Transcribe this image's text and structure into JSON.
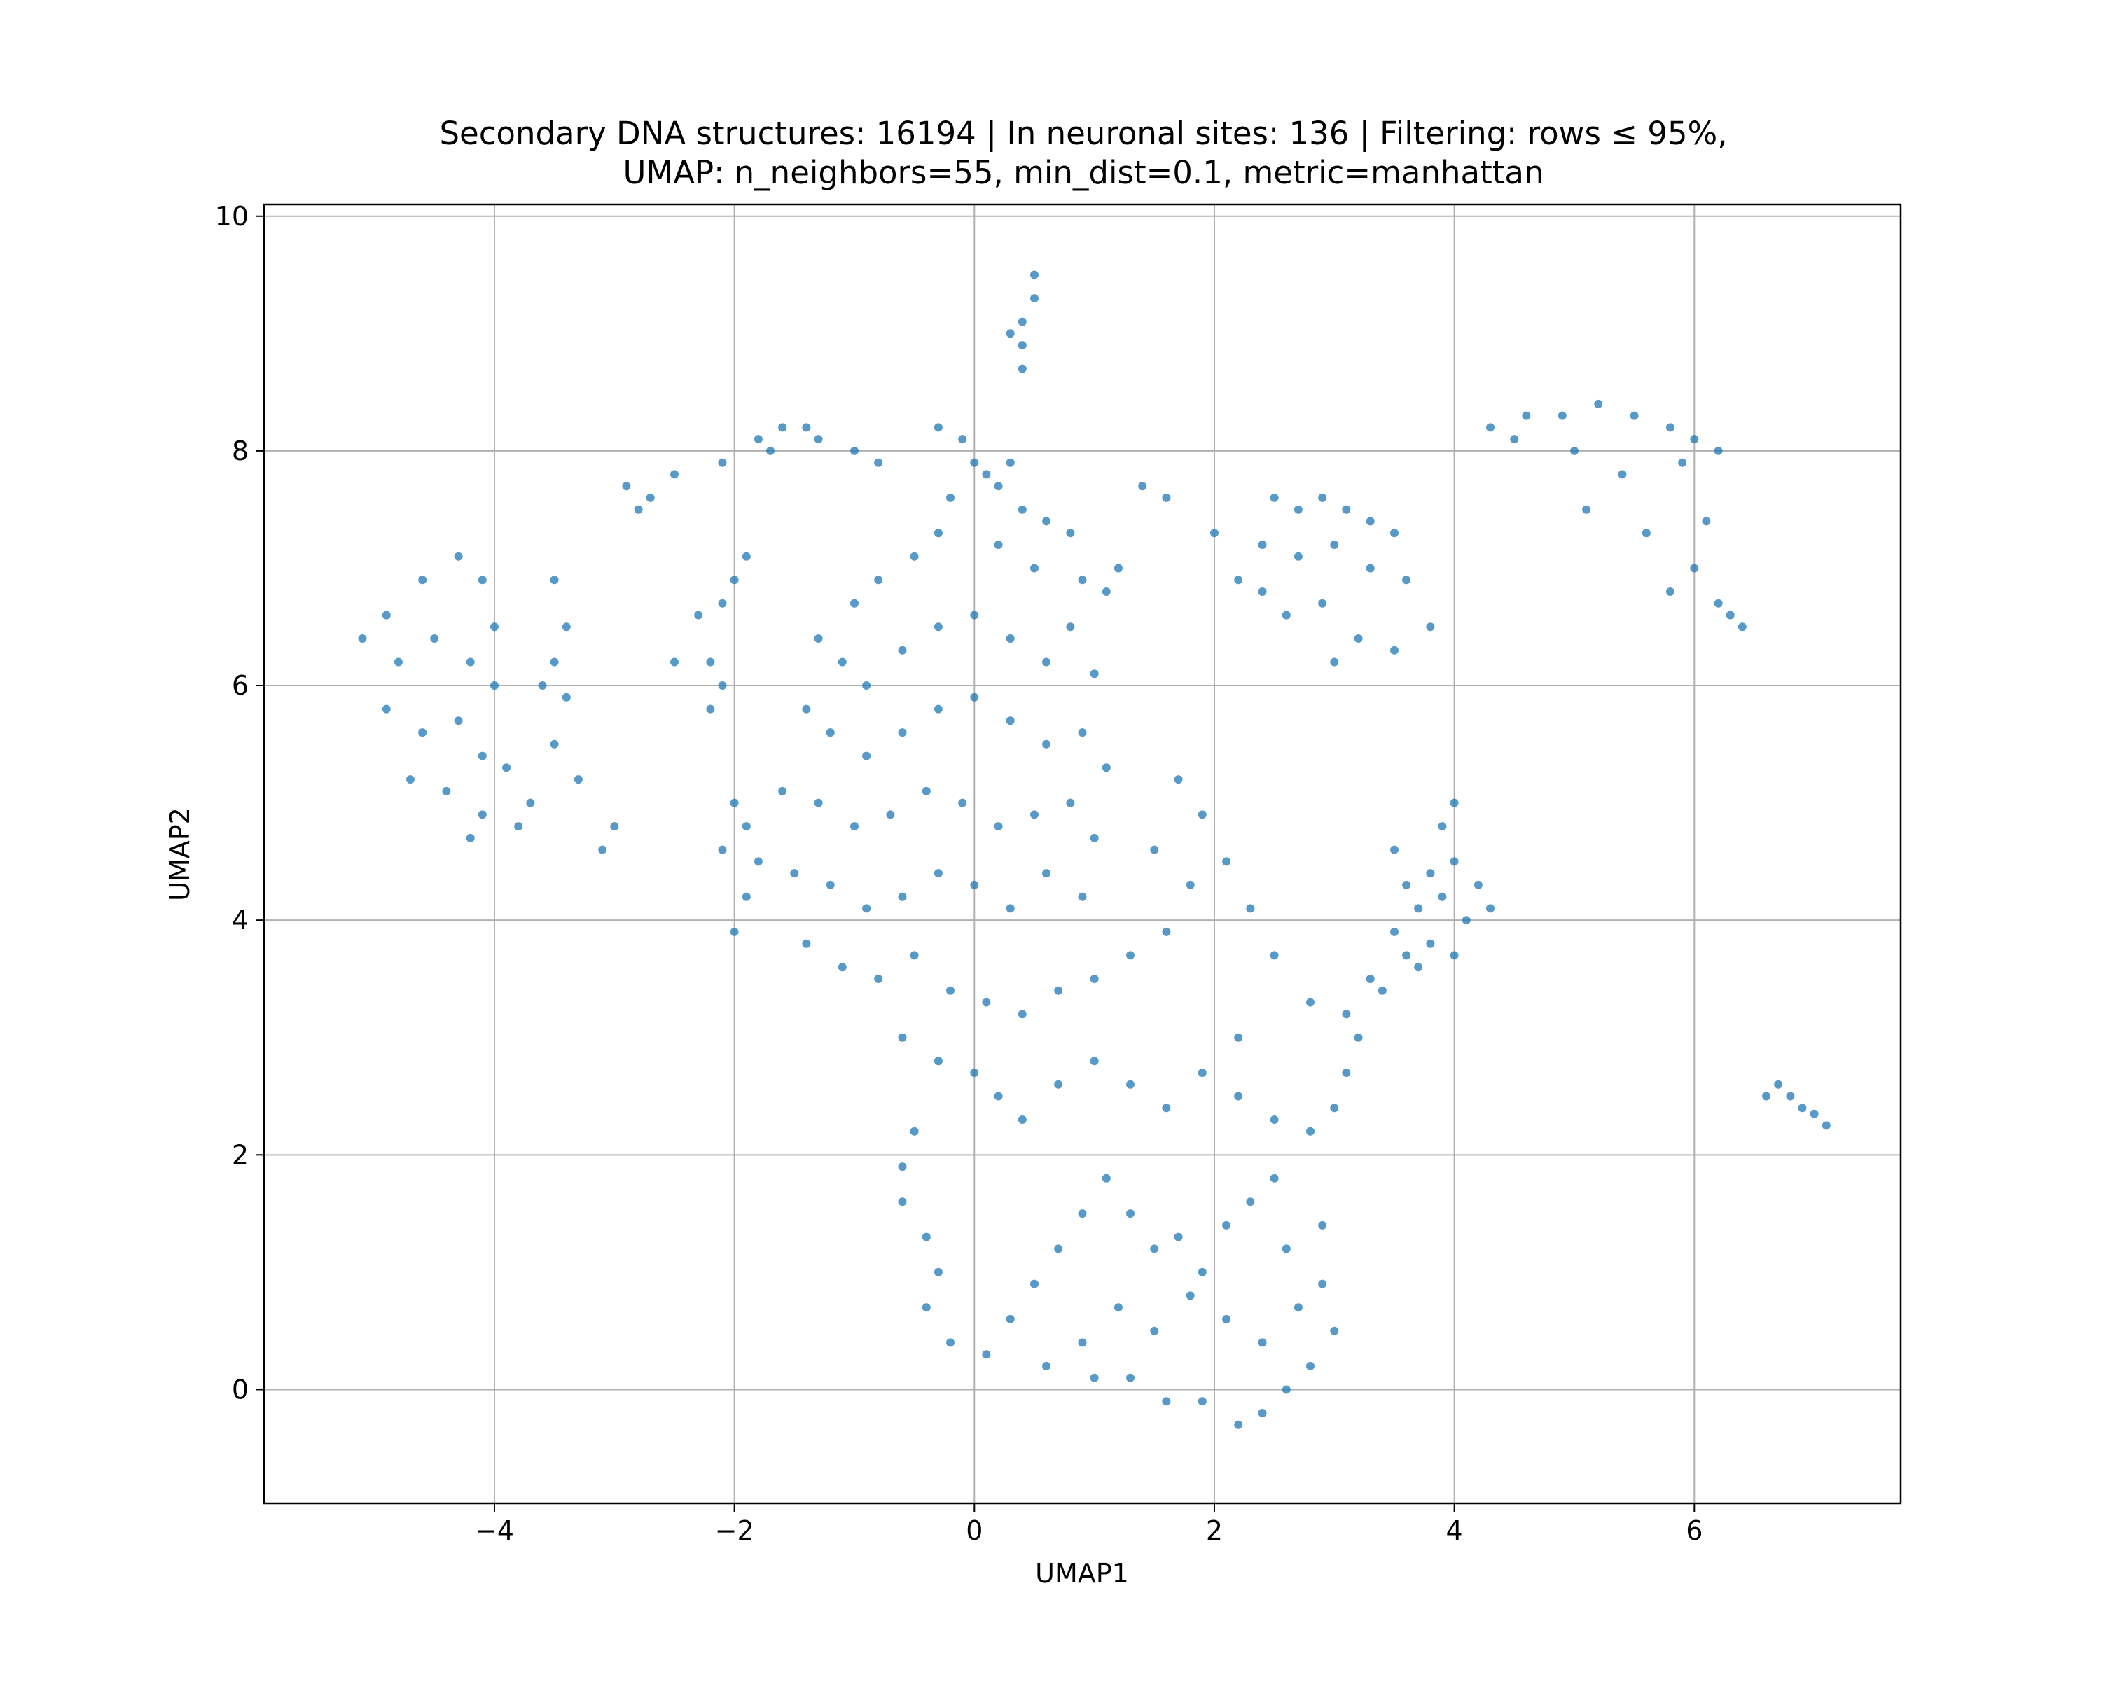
{
  "chart_data": {
    "type": "scatter",
    "title_lines": [
      "Secondary DNA structures: 16194 | In neuronal sites: 136 | Filtering: rows ≤ 95%,",
      "UMAP: n_neighbors=55, min_dist=0.1, metric=manhattan"
    ],
    "xlabel": "UMAP1",
    "ylabel": "UMAP2",
    "xlim": [
      -5.92,
      7.72
    ],
    "ylim": [
      -0.97,
      10.1
    ],
    "xticks": [
      {
        "value": -4,
        "label": "−4"
      },
      {
        "value": -2,
        "label": "−2"
      },
      {
        "value": 0,
        "label": "0"
      },
      {
        "value": 2,
        "label": "2"
      },
      {
        "value": 4,
        "label": "4"
      },
      {
        "value": 6,
        "label": "6"
      }
    ],
    "yticks": [
      {
        "value": 0,
        "label": "0"
      },
      {
        "value": 2,
        "label": "2"
      },
      {
        "value": 4,
        "label": "4"
      },
      {
        "value": 6,
        "label": "6"
      },
      {
        "value": 8,
        "label": "8"
      },
      {
        "value": 10,
        "label": "10"
      }
    ],
    "grid": true,
    "marker_color": "#1f77b4",
    "series": [
      {
        "values": [
          [
            -4.9,
            6.6
          ],
          [
            -4.6,
            6.9
          ],
          [
            -4.3,
            7.1
          ],
          [
            -4.1,
            6.9
          ],
          [
            -4.8,
            6.2
          ],
          [
            -4.5,
            6.4
          ],
          [
            -4.2,
            6.2
          ],
          [
            -4.0,
            6.0
          ],
          [
            -4.9,
            5.8
          ],
          [
            -4.6,
            5.6
          ],
          [
            -4.3,
            5.7
          ],
          [
            -4.1,
            5.4
          ],
          [
            -3.9,
            5.3
          ],
          [
            -4.7,
            5.2
          ],
          [
            -4.4,
            5.1
          ],
          [
            -4.1,
            4.9
          ],
          [
            -3.8,
            4.8
          ],
          [
            -4.2,
            4.7
          ],
          [
            -5.1,
            6.4
          ],
          [
            -4.0,
            6.5
          ],
          [
            -3.5,
            6.9
          ],
          [
            -3.4,
            6.5
          ],
          [
            -3.5,
            6.2
          ],
          [
            -3.4,
            5.9
          ],
          [
            -3.6,
            6.0
          ],
          [
            -3.5,
            5.5
          ],
          [
            -3.3,
            5.2
          ],
          [
            -3.0,
            4.8
          ],
          [
            -3.1,
            4.6
          ],
          [
            -3.7,
            5.0
          ],
          [
            -2.9,
            7.7
          ],
          [
            -2.7,
            7.6
          ],
          [
            -2.8,
            7.5
          ],
          [
            -2.5,
            7.8
          ],
          [
            -2.1,
            7.9
          ],
          [
            -2.3,
            6.6
          ],
          [
            -2.5,
            6.2
          ],
          [
            -2.1,
            6.7
          ],
          [
            -2.0,
            6.9
          ],
          [
            -1.9,
            7.1
          ],
          [
            -2.2,
            6.2
          ],
          [
            -2.1,
            6.0
          ],
          [
            -2.2,
            5.8
          ],
          [
            -2.0,
            5.0
          ],
          [
            -1.9,
            4.8
          ],
          [
            -2.1,
            4.6
          ],
          [
            -1.8,
            4.5
          ],
          [
            -1.9,
            4.2
          ],
          [
            -2.0,
            3.9
          ],
          [
            -1.8,
            8.1
          ],
          [
            -1.6,
            8.2
          ],
          [
            -1.4,
            8.2
          ],
          [
            -1.3,
            8.1
          ],
          [
            -1.7,
            8.0
          ],
          [
            -1.0,
            8.0
          ],
          [
            -0.8,
            7.9
          ],
          [
            -0.3,
            8.2
          ],
          [
            -0.1,
            8.1
          ],
          [
            0.0,
            7.9
          ],
          [
            0.1,
            7.8
          ],
          [
            0.2,
            7.7
          ],
          [
            0.3,
            7.9
          ],
          [
            -0.2,
            7.6
          ],
          [
            0.4,
            7.5
          ],
          [
            0.6,
            7.4
          ],
          [
            0.8,
            7.3
          ],
          [
            -0.3,
            7.3
          ],
          [
            -0.5,
            7.1
          ],
          [
            -0.8,
            6.9
          ],
          [
            -1.0,
            6.7
          ],
          [
            0.2,
            7.2
          ],
          [
            0.5,
            7.0
          ],
          [
            0.9,
            6.9
          ],
          [
            1.1,
            6.8
          ],
          [
            1.2,
            7.0
          ],
          [
            1.4,
            7.7
          ],
          [
            1.6,
            7.6
          ],
          [
            -1.3,
            6.4
          ],
          [
            -1.1,
            6.2
          ],
          [
            -0.9,
            6.0
          ],
          [
            -0.6,
            6.3
          ],
          [
            -0.3,
            6.5
          ],
          [
            0.0,
            6.6
          ],
          [
            0.3,
            6.4
          ],
          [
            0.6,
            6.2
          ],
          [
            0.8,
            6.5
          ],
          [
            1.0,
            6.1
          ],
          [
            -1.4,
            5.8
          ],
          [
            -1.2,
            5.6
          ],
          [
            -0.9,
            5.4
          ],
          [
            -0.6,
            5.6
          ],
          [
            -0.3,
            5.8
          ],
          [
            0.0,
            5.9
          ],
          [
            0.3,
            5.7
          ],
          [
            0.6,
            5.5
          ],
          [
            0.9,
            5.6
          ],
          [
            1.1,
            5.3
          ],
          [
            -1.6,
            5.1
          ],
          [
            -1.3,
            5.0
          ],
          [
            -1.0,
            4.8
          ],
          [
            -0.7,
            4.9
          ],
          [
            -0.4,
            5.1
          ],
          [
            -0.1,
            5.0
          ],
          [
            0.2,
            4.8
          ],
          [
            0.5,
            4.9
          ],
          [
            0.8,
            5.0
          ],
          [
            1.0,
            4.7
          ],
          [
            -1.5,
            4.4
          ],
          [
            -1.2,
            4.3
          ],
          [
            -0.9,
            4.1
          ],
          [
            -0.6,
            4.2
          ],
          [
            -0.3,
            4.4
          ],
          [
            0.0,
            4.3
          ],
          [
            0.3,
            4.1
          ],
          [
            0.6,
            4.4
          ],
          [
            0.9,
            4.2
          ],
          [
            -1.4,
            3.8
          ],
          [
            -1.1,
            3.6
          ],
          [
            -0.8,
            3.5
          ],
          [
            -0.5,
            3.7
          ],
          [
            -0.2,
            3.4
          ],
          [
            0.1,
            3.3
          ],
          [
            0.4,
            3.2
          ],
          [
            0.7,
            3.4
          ],
          [
            1.0,
            3.5
          ],
          [
            1.3,
            3.7
          ],
          [
            1.6,
            3.9
          ],
          [
            1.8,
            4.3
          ],
          [
            1.5,
            4.6
          ],
          [
            1.7,
            5.2
          ],
          [
            1.9,
            4.9
          ],
          [
            2.1,
            4.5
          ],
          [
            2.3,
            4.1
          ],
          [
            2.5,
            3.7
          ],
          [
            2.8,
            3.3
          ],
          [
            2.2,
            3.0
          ],
          [
            -0.6,
            3.0
          ],
          [
            -0.3,
            2.8
          ],
          [
            0.0,
            2.7
          ],
          [
            0.2,
            2.5
          ],
          [
            0.4,
            2.3
          ],
          [
            0.7,
            2.6
          ],
          [
            1.0,
            2.8
          ],
          [
            1.3,
            2.6
          ],
          [
            1.6,
            2.4
          ],
          [
            1.9,
            2.7
          ],
          [
            2.2,
            2.5
          ],
          [
            2.5,
            2.3
          ],
          [
            2.8,
            2.2
          ],
          [
            3.0,
            2.4
          ],
          [
            3.1,
            2.7
          ],
          [
            3.2,
            3.0
          ],
          [
            3.4,
            3.4
          ],
          [
            3.6,
            3.7
          ],
          [
            -0.5,
            2.2
          ],
          [
            -0.6,
            1.9
          ],
          [
            -0.6,
            1.6
          ],
          [
            -0.4,
            1.3
          ],
          [
            -0.3,
            1.0
          ],
          [
            -0.4,
            0.7
          ],
          [
            -0.2,
            0.4
          ],
          [
            0.1,
            0.3
          ],
          [
            0.3,
            0.6
          ],
          [
            0.5,
            0.9
          ],
          [
            0.7,
            1.2
          ],
          [
            0.9,
            1.5
          ],
          [
            1.1,
            1.8
          ],
          [
            1.3,
            1.5
          ],
          [
            1.5,
            1.2
          ],
          [
            1.7,
            1.3
          ],
          [
            1.9,
            1.0
          ],
          [
            2.1,
            1.4
          ],
          [
            2.3,
            1.6
          ],
          [
            2.5,
            1.8
          ],
          [
            0.6,
            0.2
          ],
          [
            0.9,
            0.4
          ],
          [
            1.2,
            0.7
          ],
          [
            1.5,
            0.5
          ],
          [
            1.8,
            0.8
          ],
          [
            2.1,
            0.6
          ],
          [
            2.4,
            0.4
          ],
          [
            2.7,
            0.7
          ],
          [
            2.9,
            0.9
          ],
          [
            3.0,
            0.5
          ],
          [
            2.8,
            0.2
          ],
          [
            2.6,
            0.0
          ],
          [
            2.4,
            -0.2
          ],
          [
            2.2,
            -0.3
          ],
          [
            1.9,
            -0.1
          ],
          [
            1.6,
            -0.1
          ],
          [
            1.3,
            0.1
          ],
          [
            1.0,
            0.1
          ],
          [
            2.6,
            1.2
          ],
          [
            2.9,
            1.4
          ],
          [
            2.5,
            7.6
          ],
          [
            2.7,
            7.5
          ],
          [
            2.9,
            7.6
          ],
          [
            3.1,
            7.5
          ],
          [
            3.3,
            7.4
          ],
          [
            3.5,
            7.3
          ],
          [
            2.4,
            7.2
          ],
          [
            2.7,
            7.1
          ],
          [
            3.0,
            7.2
          ],
          [
            3.3,
            7.0
          ],
          [
            3.6,
            6.9
          ],
          [
            2.4,
            6.8
          ],
          [
            2.6,
            6.6
          ],
          [
            2.9,
            6.7
          ],
          [
            3.2,
            6.4
          ],
          [
            3.5,
            6.3
          ],
          [
            3.8,
            6.5
          ],
          [
            3.0,
            6.2
          ],
          [
            2.2,
            6.9
          ],
          [
            2.0,
            7.3
          ],
          [
            4.3,
            8.2
          ],
          [
            4.6,
            8.3
          ],
          [
            4.9,
            8.3
          ],
          [
            5.2,
            8.4
          ],
          [
            5.5,
            8.3
          ],
          [
            5.8,
            8.2
          ],
          [
            6.0,
            8.1
          ],
          [
            6.2,
            8.0
          ],
          [
            4.5,
            8.1
          ],
          [
            5.0,
            8.0
          ],
          [
            5.4,
            7.8
          ],
          [
            5.9,
            7.9
          ],
          [
            5.1,
            7.5
          ],
          [
            5.6,
            7.3
          ],
          [
            6.1,
            7.4
          ],
          [
            6.0,
            7.0
          ],
          [
            6.2,
            6.7
          ],
          [
            6.3,
            6.6
          ],
          [
            6.4,
            6.5
          ],
          [
            5.8,
            6.8
          ],
          [
            3.6,
            4.3
          ],
          [
            3.7,
            4.1
          ],
          [
            3.8,
            4.4
          ],
          [
            3.9,
            4.2
          ],
          [
            4.0,
            4.5
          ],
          [
            4.1,
            4.0
          ],
          [
            4.2,
            4.3
          ],
          [
            3.8,
            3.8
          ],
          [
            4.0,
            3.7
          ],
          [
            3.7,
            3.6
          ],
          [
            3.5,
            4.6
          ],
          [
            3.9,
            4.8
          ],
          [
            3.5,
            3.9
          ],
          [
            3.3,
            3.5
          ],
          [
            3.1,
            3.2
          ],
          [
            4.3,
            4.1
          ],
          [
            4.0,
            5.0
          ],
          [
            0.4,
            9.1
          ],
          [
            0.4,
            8.9
          ],
          [
            0.5,
            9.3
          ],
          [
            0.5,
            9.5
          ],
          [
            0.3,
            9.0
          ],
          [
            0.4,
            8.7
          ],
          [
            6.7,
            2.6
          ],
          [
            6.8,
            2.5
          ],
          [
            6.9,
            2.4
          ],
          [
            7.0,
            2.35
          ],
          [
            7.1,
            2.25
          ],
          [
            6.6,
            2.5
          ]
        ]
      }
    ]
  }
}
